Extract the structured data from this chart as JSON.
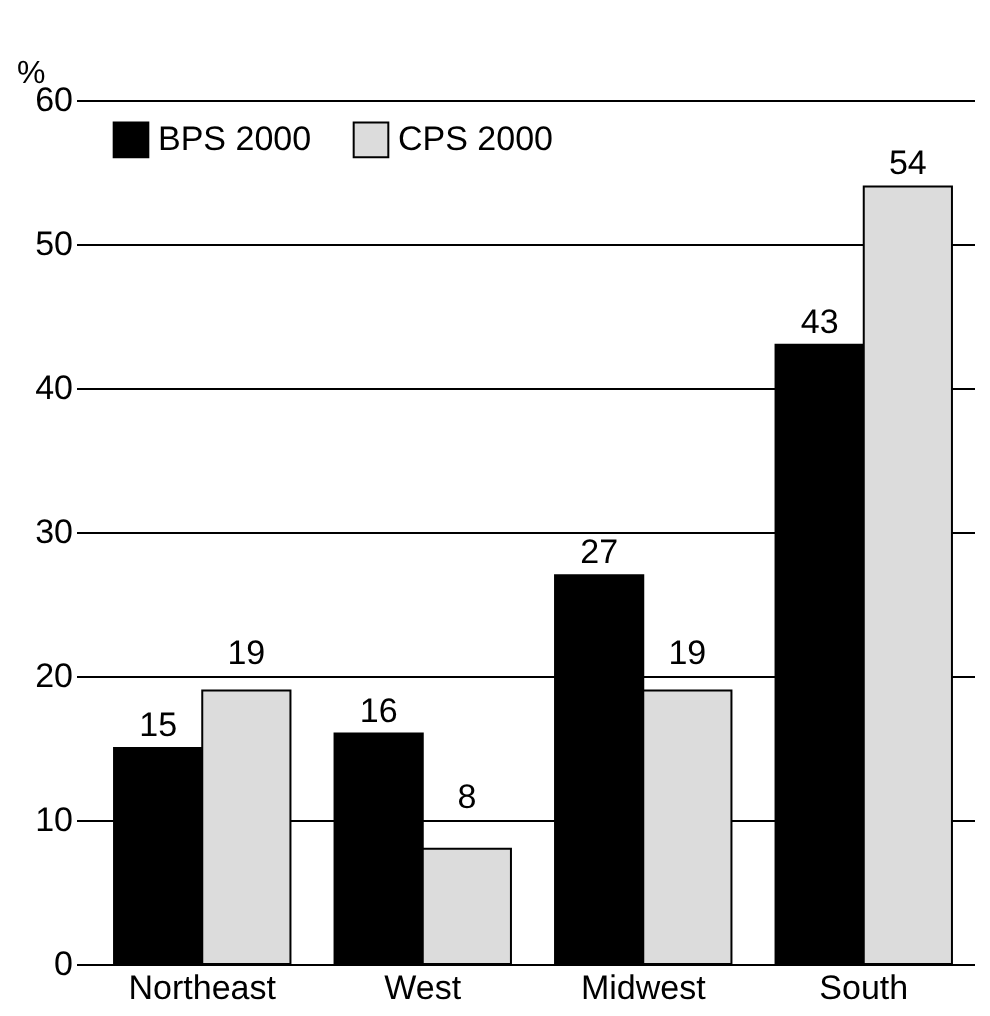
{
  "chart_data": {
    "type": "bar",
    "ylabel": "%",
    "categories": [
      "Northeast",
      "West",
      "Midwest",
      "South"
    ],
    "series": [
      {
        "name": "BPS 2000",
        "color": "#000000",
        "values": [
          15,
          16,
          27,
          43
        ]
      },
      {
        "name": "CPS 2000",
        "color": "#dcdcdc",
        "values": [
          19,
          8,
          19,
          54
        ]
      }
    ],
    "ylim": [
      0,
      60
    ],
    "yticks": [
      0,
      10,
      20,
      30,
      40,
      50,
      60
    ],
    "grid": "y",
    "legend": "top left",
    "data_labels": true
  }
}
